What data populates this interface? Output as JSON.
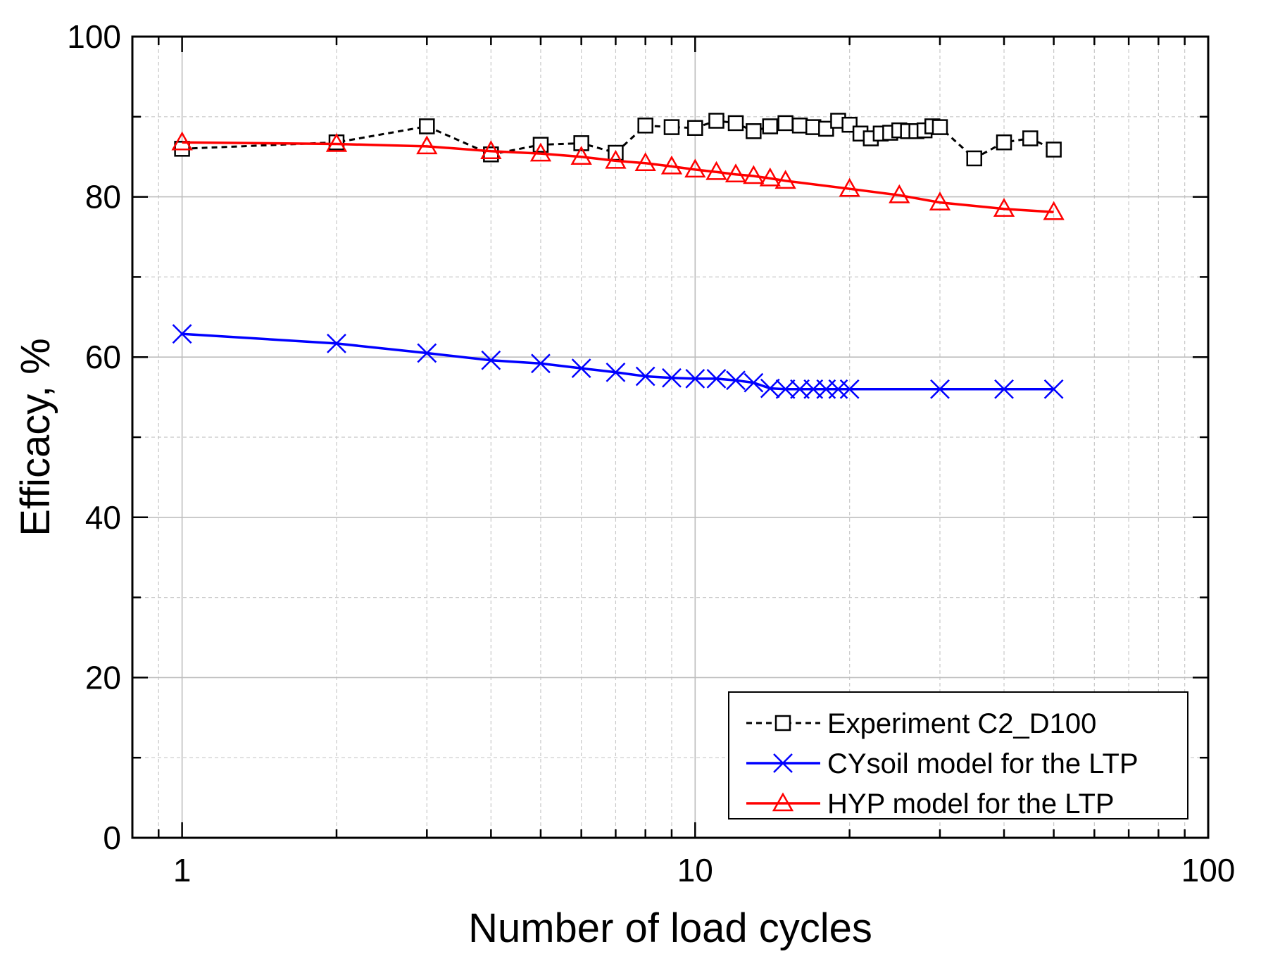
{
  "chart_data": {
    "type": "line",
    "title": "",
    "xlabel": "Number of load cycles",
    "ylabel": "Efficacy, %",
    "xscale": "log",
    "xlim": [
      0.8,
      100
    ],
    "ylim": [
      0,
      100
    ],
    "grid": true,
    "legend_position": "bottom-right",
    "x_tick_labels": [
      "1",
      "10",
      "100"
    ],
    "y_tick_labels": [
      "0",
      "20",
      "40",
      "60",
      "80",
      "100"
    ],
    "series": [
      {
        "name": "Experiment C2_D100",
        "color": "#000000",
        "line_style": "dashed",
        "marker": "square",
        "x": [
          1,
          2,
          3,
          4,
          5,
          6,
          7,
          8,
          9,
          10,
          11,
          12,
          13,
          14,
          15,
          16,
          17,
          18,
          19,
          20,
          21,
          22,
          23,
          24,
          25,
          26,
          27,
          28,
          29,
          30,
          35,
          40,
          45,
          50
        ],
        "y": [
          86.0,
          86.8,
          88.8,
          85.3,
          86.5,
          86.7,
          85.5,
          88.9,
          88.7,
          88.6,
          89.5,
          89.2,
          88.2,
          88.8,
          89.2,
          88.9,
          88.7,
          88.5,
          89.5,
          89.0,
          87.9,
          87.3,
          87.9,
          88.0,
          88.3,
          88.2,
          88.2,
          88.3,
          88.8,
          88.7,
          84.8,
          86.8,
          87.3,
          85.9
        ]
      },
      {
        "name": "CYsoil model for the LTP",
        "color": "#0000ff",
        "line_style": "solid",
        "marker": "x",
        "x": [
          1,
          2,
          3,
          4,
          5,
          6,
          7,
          8,
          9,
          10,
          11,
          12,
          13,
          14,
          15,
          16,
          17,
          18,
          19,
          20,
          30,
          40,
          50
        ],
        "y": [
          62.9,
          61.7,
          60.5,
          59.6,
          59.2,
          58.6,
          58.1,
          57.6,
          57.4,
          57.3,
          57.3,
          57.1,
          56.8,
          56.1,
          56.0,
          56.0,
          56.0,
          56.0,
          56.0,
          56.0,
          56.0,
          56.0,
          56.0
        ]
      },
      {
        "name": "HYP model for the LTP",
        "color": "#ff0000",
        "line_style": "solid",
        "marker": "triangle",
        "x": [
          1,
          2,
          3,
          4,
          5,
          6,
          7,
          8,
          9,
          10,
          11,
          12,
          13,
          14,
          15,
          20,
          25,
          30,
          40,
          50
        ],
        "y": [
          86.8,
          86.6,
          86.3,
          85.7,
          85.4,
          85.0,
          84.5,
          84.2,
          83.8,
          83.4,
          83.1,
          82.8,
          82.6,
          82.3,
          82.0,
          81.0,
          80.2,
          79.3,
          78.5,
          78.1
        ]
      }
    ]
  }
}
